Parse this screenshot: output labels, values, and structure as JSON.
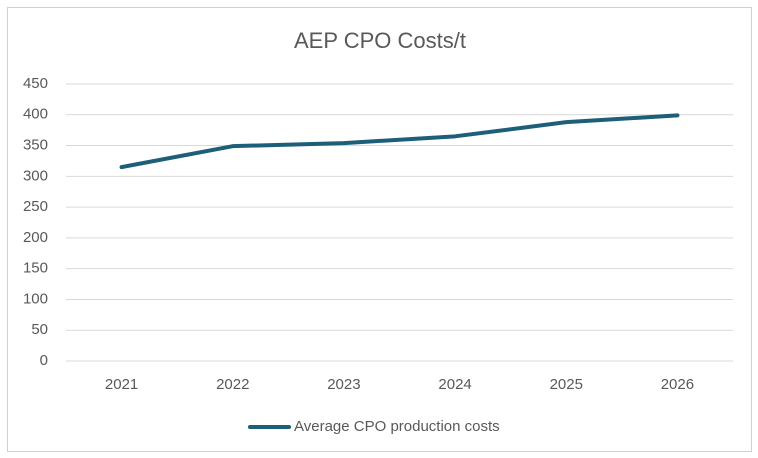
{
  "chart_data": {
    "type": "line",
    "title": "AEP CPO Costs/t",
    "categories": [
      "2021",
      "2022",
      "2023",
      "2024",
      "2025",
      "2026"
    ],
    "series": [
      {
        "name": "Average CPO production costs",
        "color": "#1d5e78",
        "values": [
          315,
          349,
          354,
          365,
          388,
          399
        ]
      }
    ],
    "ylim": [
      0,
      450
    ],
    "yticks": [
      0,
      50,
      100,
      150,
      200,
      250,
      300,
      350,
      400,
      450
    ],
    "grid": true,
    "legend": "bottom"
  }
}
